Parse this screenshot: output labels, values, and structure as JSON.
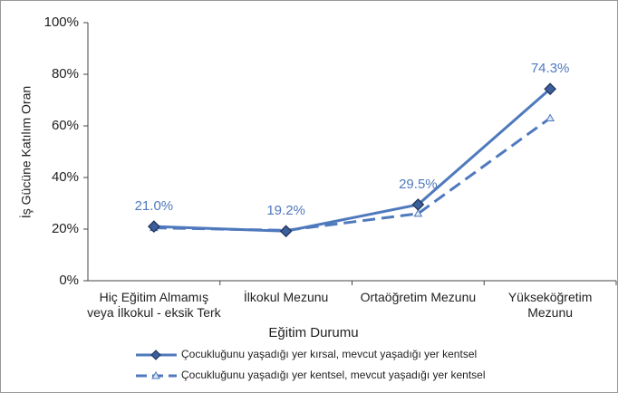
{
  "chart_data": {
    "type": "line",
    "categories": [
      "Hiç Eğitim Almamış\nveya İlkokul - eksik Terk",
      "İlkokul Mezunu",
      "Ortaöğretim Mezunu",
      "Yükseköğretim\nMezunu"
    ],
    "x_label": "Eğitim Durumu",
    "y_label": "İş Gücüne Katılım Oran",
    "ylim": [
      0,
      100
    ],
    "yticks": [
      {
        "value": 0,
        "label": "0%"
      },
      {
        "value": 20,
        "label": "20%"
      },
      {
        "value": 40,
        "label": "40%"
      },
      {
        "value": 60,
        "label": "60%"
      },
      {
        "value": 80,
        "label": "80%"
      },
      {
        "value": 100,
        "label": "100%"
      }
    ],
    "series": [
      {
        "name": "Çocukluğunu yaşadığı yer kırsal, mevcut yaşadığı yer kentsel",
        "color": "#4f79bd",
        "dash": false,
        "values": [
          21.0,
          19.2,
          29.5,
          74.3
        ],
        "value_labels": [
          "21.0%",
          "19.2%",
          "29.5%",
          "74.3%"
        ]
      },
      {
        "name": "Çocukluğunu yaşadığı yer kentsel, mevcut yaşadığı yer kentsel",
        "color": "#4f79bd",
        "dash": true,
        "values": [
          20.5,
          19.5,
          26,
          63
        ]
      }
    ]
  }
}
